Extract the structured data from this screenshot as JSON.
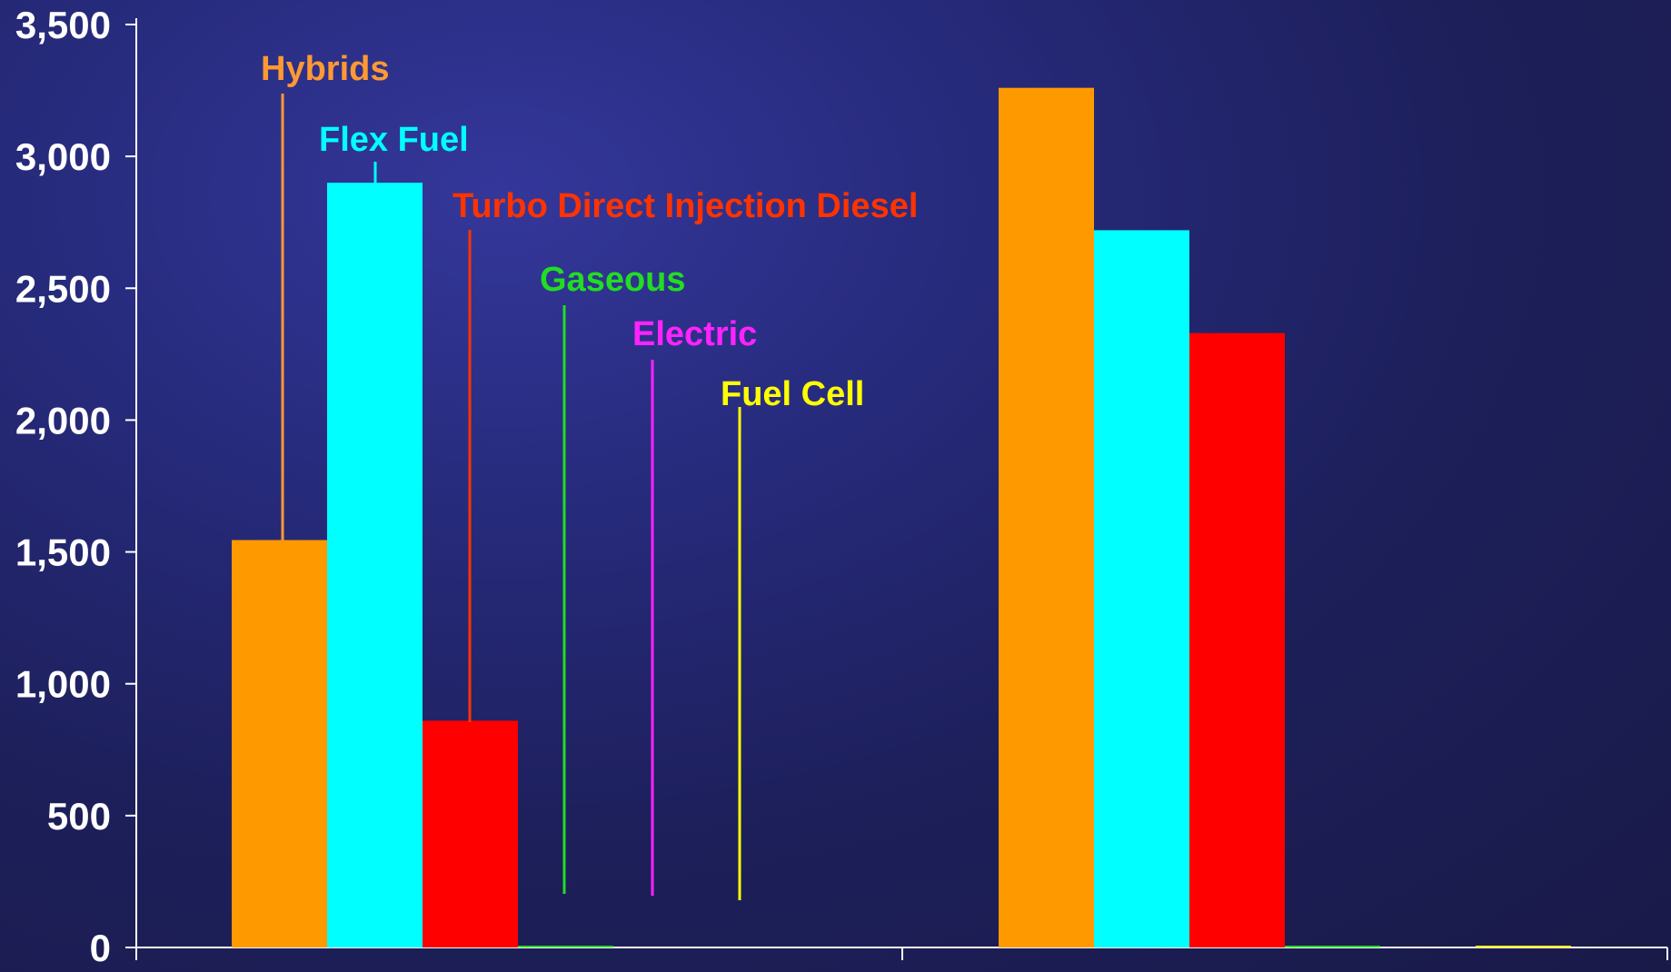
{
  "chart_data": {
    "type": "bar",
    "categories": [
      "",
      ""
    ],
    "ylim": [
      0,
      3500
    ],
    "yticks": [
      0,
      500,
      1000,
      1500,
      2000,
      2500,
      3000,
      3500
    ],
    "ytick_labels": [
      "0",
      "500",
      "1,000",
      "1,500",
      "2,000",
      "2,500",
      "3,000",
      "3,500"
    ],
    "grid": false,
    "legend": "callout labels with leader lines",
    "series": [
      {
        "name": "Hybrids",
        "color": "#ff9900",
        "values": [
          1545,
          3260
        ]
      },
      {
        "name": "Flex Fuel",
        "color": "#00ffff",
        "values": [
          2900,
          2720
        ]
      },
      {
        "name": "Turbo Direct Injection Diesel",
        "color": "#ff0000",
        "values": [
          860,
          2330
        ]
      },
      {
        "name": "Gaseous",
        "color": "#22dd22",
        "values": [
          5,
          5
        ]
      },
      {
        "name": "Electric",
        "color": "#ff00ff",
        "values": [
          0,
          0
        ]
      },
      {
        "name": "Fuel Cell",
        "color": "#ffff00",
        "values": [
          0,
          5
        ]
      }
    ],
    "label_colors": {
      "Hybrids": "#ff9933",
      "Flex Fuel": "#00ffff",
      "Turbo Direct Injection Diesel": "#ff3300",
      "Gaseous": "#22dd22",
      "Electric": "#ff22ff",
      "Fuel Cell": "#ffff00"
    }
  }
}
